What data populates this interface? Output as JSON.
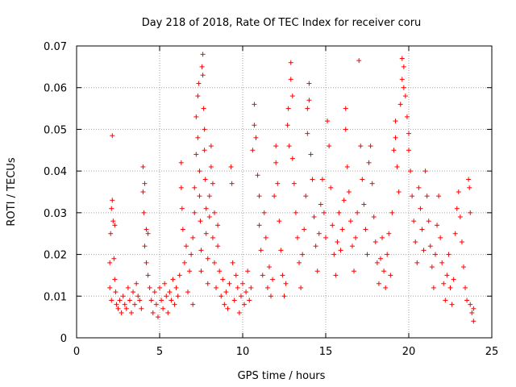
{
  "chart_data": {
    "type": "scatter",
    "title": "Day 218 of 2018, Rate Of TEC Index for receiver coru",
    "xlabel": "GPS time / hours",
    "ylabel": "ROTI / TECUs",
    "xlim": [
      0,
      25
    ],
    "ylim": [
      0,
      0.07
    ],
    "xticks": [
      0,
      5,
      10,
      15,
      20,
      25
    ],
    "xtick_labels": [
      "0",
      "5",
      "10",
      "15",
      "20",
      "25"
    ],
    "yticks": [
      0,
      0.01,
      0.02,
      0.03,
      0.04,
      0.05,
      0.06,
      0.07
    ],
    "ytick_labels": [
      "0",
      "0.01",
      "0.02",
      "0.03",
      "0.04",
      "0.05",
      "0.06",
      "0.07"
    ],
    "grid": true,
    "marker": "+",
    "color": "#ff0000",
    "series": [
      {
        "name": "ROTI",
        "points": [
          [
            2.0,
            0.012
          ],
          [
            2.0,
            0.018
          ],
          [
            2.05,
            0.025
          ],
          [
            2.1,
            0.031
          ],
          [
            2.1,
            0.009
          ],
          [
            2.15,
            0.0485
          ],
          [
            2.15,
            0.033
          ],
          [
            2.2,
            0.028
          ],
          [
            2.25,
            0.019
          ],
          [
            2.3,
            0.014
          ],
          [
            2.3,
            0.027
          ],
          [
            2.35,
            0.011
          ],
          [
            2.4,
            0.008
          ],
          [
            2.5,
            0.007
          ],
          [
            2.6,
            0.009
          ],
          [
            2.7,
            0.006
          ],
          [
            2.8,
            0.01
          ],
          [
            2.9,
            0.008
          ],
          [
            3.0,
            0.007
          ],
          [
            3.1,
            0.012
          ],
          [
            3.2,
            0.009
          ],
          [
            3.3,
            0.006
          ],
          [
            3.4,
            0.011
          ],
          [
            3.5,
            0.008
          ],
          [
            3.6,
            0.013
          ],
          [
            3.7,
            0.01
          ],
          [
            3.8,
            0.009
          ],
          [
            3.9,
            0.007
          ],
          [
            4.0,
            0.041
          ],
          [
            4.0,
            0.035
          ],
          [
            4.05,
            0.03
          ],
          [
            4.1,
            0.037
          ],
          [
            4.1,
            0.022
          ],
          [
            4.2,
            0.026
          ],
          [
            4.2,
            0.018
          ],
          [
            4.3,
            0.015
          ],
          [
            4.3,
            0.025
          ],
          [
            4.4,
            0.012
          ],
          [
            4.5,
            0.009
          ],
          [
            4.6,
            0.006
          ],
          [
            4.7,
            0.011
          ],
          [
            4.8,
            0.008
          ],
          [
            4.9,
            0.005
          ],
          [
            5.0,
            0.012
          ],
          [
            5.1,
            0.009
          ],
          [
            5.2,
            0.007
          ],
          [
            5.3,
            0.013
          ],
          [
            5.4,
            0.01
          ],
          [
            5.5,
            0.006
          ],
          [
            5.6,
            0.011
          ],
          [
            5.7,
            0.009
          ],
          [
            5.8,
            0.014
          ],
          [
            5.9,
            0.008
          ],
          [
            6.0,
            0.012
          ],
          [
            6.1,
            0.01
          ],
          [
            6.2,
            0.015
          ],
          [
            6.3,
            0.036
          ],
          [
            6.3,
            0.042
          ],
          [
            6.35,
            0.031
          ],
          [
            6.4,
            0.026
          ],
          [
            6.5,
            0.018
          ],
          [
            6.6,
            0.022
          ],
          [
            6.7,
            0.011
          ],
          [
            6.8,
            0.016
          ],
          [
            6.9,
            0.02
          ],
          [
            7.0,
            0.024
          ],
          [
            7.0,
            0.008
          ],
          [
            7.1,
            0.03
          ],
          [
            7.1,
            0.036
          ],
          [
            7.2,
            0.044
          ],
          [
            7.2,
            0.053
          ],
          [
            7.3,
            0.048
          ],
          [
            7.3,
            0.058
          ],
          [
            7.35,
            0.061
          ],
          [
            7.4,
            0.04
          ],
          [
            7.4,
            0.034
          ],
          [
            7.45,
            0.028
          ],
          [
            7.5,
            0.021
          ],
          [
            7.5,
            0.016
          ],
          [
            7.55,
            0.065
          ],
          [
            7.6,
            0.068
          ],
          [
            7.6,
            0.063
          ],
          [
            7.65,
            0.055
          ],
          [
            7.7,
            0.05
          ],
          [
            7.7,
            0.045
          ],
          [
            7.75,
            0.038
          ],
          [
            7.8,
            0.031
          ],
          [
            7.8,
            0.025
          ],
          [
            7.9,
            0.019
          ],
          [
            7.9,
            0.013
          ],
          [
            8.0,
            0.034
          ],
          [
            8.0,
            0.029
          ],
          [
            8.1,
            0.041
          ],
          [
            8.1,
            0.046
          ],
          [
            8.2,
            0.037
          ],
          [
            8.2,
            0.024
          ],
          [
            8.3,
            0.018
          ],
          [
            8.3,
            0.03
          ],
          [
            8.4,
            0.012
          ],
          [
            8.5,
            0.022
          ],
          [
            8.5,
            0.027
          ],
          [
            8.6,
            0.016
          ],
          [
            8.7,
            0.01
          ],
          [
            8.8,
            0.014
          ],
          [
            8.9,
            0.008
          ],
          [
            9.0,
            0.011
          ],
          [
            9.1,
            0.007
          ],
          [
            9.2,
            0.013
          ],
          [
            9.3,
            0.041
          ],
          [
            9.35,
            0.037
          ],
          [
            9.4,
            0.018
          ],
          [
            9.5,
            0.009
          ],
          [
            9.6,
            0.015
          ],
          [
            9.7,
            0.012
          ],
          [
            9.8,
            0.006
          ],
          [
            9.9,
            0.01
          ],
          [
            10.0,
            0.013
          ],
          [
            10.1,
            0.008
          ],
          [
            10.2,
            0.011
          ],
          [
            10.3,
            0.016
          ],
          [
            10.4,
            0.009
          ],
          [
            10.5,
            0.012
          ],
          [
            10.6,
            0.045
          ],
          [
            10.7,
            0.056
          ],
          [
            10.7,
            0.051
          ],
          [
            10.8,
            0.048
          ],
          [
            10.9,
            0.039
          ],
          [
            11.0,
            0.034
          ],
          [
            11.0,
            0.027
          ],
          [
            11.1,
            0.021
          ],
          [
            11.2,
            0.015
          ],
          [
            11.3,
            0.03
          ],
          [
            11.4,
            0.024
          ],
          [
            11.5,
            0.012
          ],
          [
            11.6,
            0.017
          ],
          [
            11.7,
            0.01
          ],
          [
            11.8,
            0.014
          ],
          [
            11.9,
            0.034
          ],
          [
            12.0,
            0.046
          ],
          [
            12.0,
            0.042
          ],
          [
            12.1,
            0.037
          ],
          [
            12.2,
            0.028
          ],
          [
            12.3,
            0.021
          ],
          [
            12.4,
            0.015
          ],
          [
            12.5,
            0.01
          ],
          [
            12.6,
            0.013
          ],
          [
            12.7,
            0.051
          ],
          [
            12.75,
            0.055
          ],
          [
            12.8,
            0.046
          ],
          [
            12.9,
            0.066
          ],
          [
            12.9,
            0.062
          ],
          [
            13.0,
            0.058
          ],
          [
            13.0,
            0.043
          ],
          [
            13.1,
            0.037
          ],
          [
            13.2,
            0.03
          ],
          [
            13.3,
            0.024
          ],
          [
            13.4,
            0.018
          ],
          [
            13.5,
            0.012
          ],
          [
            13.6,
            0.02
          ],
          [
            13.7,
            0.026
          ],
          [
            13.8,
            0.034
          ],
          [
            13.9,
            0.049
          ],
          [
            13.9,
            0.055
          ],
          [
            14.0,
            0.061
          ],
          [
            14.0,
            0.057
          ],
          [
            14.1,
            0.044
          ],
          [
            14.2,
            0.038
          ],
          [
            14.3,
            0.029
          ],
          [
            14.4,
            0.022
          ],
          [
            14.5,
            0.016
          ],
          [
            14.6,
            0.025
          ],
          [
            14.7,
            0.032
          ],
          [
            14.8,
            0.038
          ],
          [
            14.9,
            0.03
          ],
          [
            15.0,
            0.024
          ],
          [
            15.1,
            0.052
          ],
          [
            15.2,
            0.046
          ],
          [
            15.3,
            0.036
          ],
          [
            15.4,
            0.027
          ],
          [
            15.5,
            0.02
          ],
          [
            15.6,
            0.015
          ],
          [
            15.7,
            0.023
          ],
          [
            15.8,
            0.03
          ],
          [
            15.9,
            0.021
          ],
          [
            16.0,
            0.026
          ],
          [
            16.1,
            0.033
          ],
          [
            16.2,
            0.055
          ],
          [
            16.2,
            0.05
          ],
          [
            16.3,
            0.041
          ],
          [
            16.4,
            0.035
          ],
          [
            16.5,
            0.028
          ],
          [
            16.6,
            0.022
          ],
          [
            16.7,
            0.016
          ],
          [
            16.8,
            0.024
          ],
          [
            16.9,
            0.03
          ],
          [
            17.0,
            0.0665
          ],
          [
            17.1,
            0.046
          ],
          [
            17.2,
            0.038
          ],
          [
            17.3,
            0.032
          ],
          [
            17.4,
            0.026
          ],
          [
            17.5,
            0.02
          ],
          [
            17.6,
            0.042
          ],
          [
            17.7,
            0.046
          ],
          [
            17.8,
            0.037
          ],
          [
            17.9,
            0.029
          ],
          [
            18.0,
            0.023
          ],
          [
            18.1,
            0.018
          ],
          [
            18.2,
            0.013
          ],
          [
            18.3,
            0.019
          ],
          [
            18.4,
            0.024
          ],
          [
            18.5,
            0.016
          ],
          [
            18.6,
            0.012
          ],
          [
            18.7,
            0.02
          ],
          [
            18.8,
            0.025
          ],
          [
            18.9,
            0.015
          ],
          [
            19.0,
            0.03
          ],
          [
            19.1,
            0.045
          ],
          [
            19.2,
            0.052
          ],
          [
            19.2,
            0.048
          ],
          [
            19.3,
            0.041
          ],
          [
            19.4,
            0.035
          ],
          [
            19.5,
            0.056
          ],
          [
            19.6,
            0.062
          ],
          [
            19.6,
            0.067
          ],
          [
            19.7,
            0.065
          ],
          [
            19.7,
            0.06
          ],
          [
            19.8,
            0.058
          ],
          [
            19.9,
            0.053
          ],
          [
            20.0,
            0.049
          ],
          [
            20.0,
            0.045
          ],
          [
            20.1,
            0.04
          ],
          [
            20.2,
            0.034
          ],
          [
            20.3,
            0.028
          ],
          [
            20.4,
            0.023
          ],
          [
            20.5,
            0.018
          ],
          [
            20.6,
            0.036
          ],
          [
            20.7,
            0.031
          ],
          [
            20.8,
            0.026
          ],
          [
            20.9,
            0.021
          ],
          [
            21.0,
            0.04
          ],
          [
            21.1,
            0.034
          ],
          [
            21.2,
            0.028
          ],
          [
            21.3,
            0.022
          ],
          [
            21.4,
            0.017
          ],
          [
            21.5,
            0.012
          ],
          [
            21.6,
            0.02
          ],
          [
            21.7,
            0.027
          ],
          [
            21.8,
            0.034
          ],
          [
            21.9,
            0.024
          ],
          [
            22.0,
            0.018
          ],
          [
            22.1,
            0.013
          ],
          [
            22.2,
            0.009
          ],
          [
            22.3,
            0.015
          ],
          [
            22.4,
            0.02
          ],
          [
            22.5,
            0.012
          ],
          [
            22.6,
            0.008
          ],
          [
            22.7,
            0.014
          ],
          [
            22.8,
            0.025
          ],
          [
            22.9,
            0.031
          ],
          [
            23.0,
            0.035
          ],
          [
            23.1,
            0.029
          ],
          [
            23.2,
            0.023
          ],
          [
            23.3,
            0.017
          ],
          [
            23.4,
            0.012
          ],
          [
            23.5,
            0.009
          ],
          [
            23.6,
            0.038
          ],
          [
            23.65,
            0.036
          ],
          [
            23.7,
            0.03
          ],
          [
            23.7,
            0.008
          ],
          [
            23.8,
            0.006
          ],
          [
            23.9,
            0.004
          ],
          [
            23.9,
            0.007
          ]
        ]
      }
    ]
  }
}
